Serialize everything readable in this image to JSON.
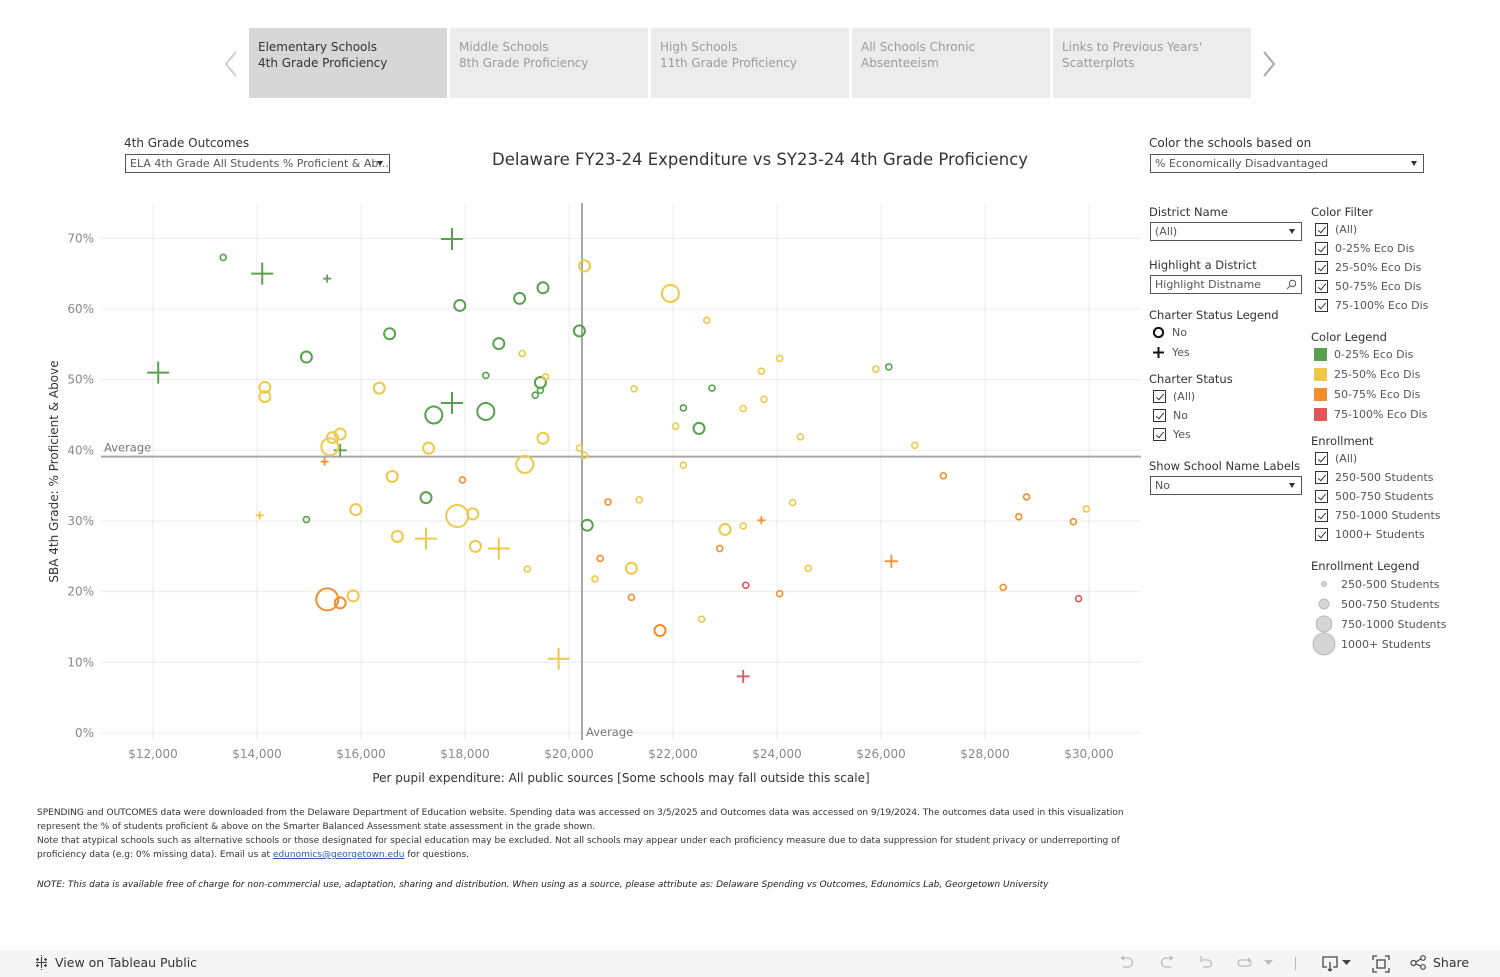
{
  "tabs": [
    {
      "line1": "Elementary Schools",
      "line2": "4th Grade Proficiency",
      "active": true
    },
    {
      "line1": "Middle Schools",
      "line2": "8th Grade Proficiency",
      "active": false
    },
    {
      "line1": "High Schools",
      "line2": "11th Grade Proficiency",
      "active": false
    },
    {
      "line1": "All Schools Chronic",
      "line2": "Absenteeism",
      "active": false
    },
    {
      "line1": "Links to Previous Years'",
      "line2": "Scatterplots",
      "active": false
    }
  ],
  "outcomes": {
    "label": "4th Grade Outcomes",
    "value": "ELA 4th Grade All Students % Proficient & Ab..."
  },
  "color_by": {
    "label": "Color the schools based on",
    "value": "% Economically Disadvantaged"
  },
  "district": {
    "label": "District Name",
    "value": "(All)"
  },
  "highlight": {
    "label": "Highlight a District",
    "placeholder": "Highlight Distname"
  },
  "charter_legend": {
    "title": "Charter Status Legend",
    "items": [
      "No",
      "Yes"
    ]
  },
  "charter_status": {
    "title": "Charter Status",
    "items": [
      "(All)",
      "No",
      "Yes"
    ]
  },
  "school_labels": {
    "label": "Show School Name Labels",
    "value": "No"
  },
  "color_filter": {
    "title": "Color Filter",
    "items": [
      "(All)",
      "0-25% Eco Dis",
      "25-50% Eco Dis",
      "50-75% Eco Dis",
      "75-100% Eco Dis"
    ]
  },
  "color_legend": {
    "title": "Color Legend",
    "items": [
      {
        "label": "0-25% Eco Dis",
        "color": "#59a14f"
      },
      {
        "label": "25-50% Eco Dis",
        "color": "#edc948"
      },
      {
        "label": "50-75% Eco Dis",
        "color": "#f28e2b"
      },
      {
        "label": "75-100% Eco Dis",
        "color": "#e15759"
      }
    ]
  },
  "enrollment_filter": {
    "title": "Enrollment",
    "items": [
      "(All)",
      "250-500 Students",
      "500-750 Students",
      "750-1000 Students",
      "1000+ Students"
    ]
  },
  "enrollment_legend": {
    "title": "Enrollment Legend",
    "items": [
      "250-500 Students",
      "500-750 Students",
      "750-1000 Students",
      "1000+ Students"
    ]
  },
  "notes": {
    "para1": "SPENDING and OUTCOMES data were downloaded from the Delaware Department of Education website. Spending data was accessed on 3/5/2025 and Outcomes data was accessed on 9/19/2024. The outcomes data used in this visualization represent the % of students proficient & above on the Smarter Balanced Assessment state assessment in the grade shown.",
    "para2_pre": "Note that atypical schools such as alternative schools or those designated for special education may be excluded. Not all schools may appear under each proficiency measure due to data suppression for student privacy or underreporting of proficiency data (e.g: 0% missing data). Email us at ",
    "email": "edunomics@georgetown.edu",
    "para2_post": " for questions.",
    "attribution": "NOTE: This data is available free of charge for non-commercial use, adaptation, sharing and distribution. When using as a source, please attribute as: Delaware Spending vs Outcomes, Edunomics Lab, Georgetown University"
  },
  "footer": {
    "view_label": "View on Tableau Public",
    "share_label": "Share"
  },
  "chart_data": {
    "type": "scatter",
    "title": "Delaware FY23-24 Expenditure vs SY23-24 4th Grade Proficiency",
    "xlabel": "Per pupil expenditure: All public sources [Some schools may fall outside this scale]",
    "ylabel": "SBA 4th Grade: % Proficient & Above",
    "xlim": [
      11000,
      31000
    ],
    "ylim": [
      -1,
      75
    ],
    "x_ticks": [
      12000,
      14000,
      16000,
      18000,
      20000,
      22000,
      24000,
      26000,
      28000,
      30000
    ],
    "x_tick_labels": [
      "$12,000",
      "$14,000",
      "$16,000",
      "$18,000",
      "$20,000",
      "$22,000",
      "$24,000",
      "$26,000",
      "$28,000",
      "$30,000"
    ],
    "y_ticks": [
      0,
      10,
      20,
      30,
      40,
      50,
      60,
      70
    ],
    "y_tick_labels": [
      "0%",
      "10%",
      "20%",
      "30%",
      "40%",
      "50%",
      "60%",
      "70%"
    ],
    "grid": true,
    "reference_lines": {
      "x_average": 20250,
      "y_average": 39.1,
      "label": "Average"
    },
    "encoding": {
      "color": "% Economically Disadvantaged band",
      "shape": "Charter status (circle = No, plus = Yes)",
      "size": "Enrollment band"
    },
    "colors": {
      "0-25": "#59a14f",
      "25-50": "#edc948",
      "50-75": "#f28e2b",
      "75-100": "#e15759"
    },
    "points": [
      {
        "x": 13350,
        "y": 67.3,
        "eco": "0-25",
        "charter": false,
        "size": 1
      },
      {
        "x": 14100,
        "y": 65.0,
        "eco": "0-25",
        "charter": true,
        "size": 3
      },
      {
        "x": 15350,
        "y": 64.3,
        "eco": "0-25",
        "charter": true,
        "size": 1
      },
      {
        "x": 17750,
        "y": 69.9,
        "eco": "0-25",
        "charter": true,
        "size": 3
      },
      {
        "x": 12100,
        "y": 51.0,
        "eco": "0-25",
        "charter": true,
        "size": 3
      },
      {
        "x": 14950,
        "y": 53.2,
        "eco": "0-25",
        "charter": false,
        "size": 2
      },
      {
        "x": 16550,
        "y": 56.5,
        "eco": "0-25",
        "charter": false,
        "size": 2
      },
      {
        "x": 17900,
        "y": 60.5,
        "eco": "0-25",
        "charter": false,
        "size": 2
      },
      {
        "x": 19050,
        "y": 61.5,
        "eco": "0-25",
        "charter": false,
        "size": 2
      },
      {
        "x": 19500,
        "y": 63.0,
        "eco": "0-25",
        "charter": false,
        "size": 2
      },
      {
        "x": 20200,
        "y": 56.9,
        "eco": "0-25",
        "charter": false,
        "size": 2
      },
      {
        "x": 18650,
        "y": 55.1,
        "eco": "0-25",
        "charter": false,
        "size": 2
      },
      {
        "x": 18400,
        "y": 50.6,
        "eco": "0-25",
        "charter": false,
        "size": 1
      },
      {
        "x": 19450,
        "y": 49.6,
        "eco": "0-25",
        "charter": false,
        "size": 2
      },
      {
        "x": 19450,
        "y": 48.5,
        "eco": "0-25",
        "charter": false,
        "size": 1
      },
      {
        "x": 19350,
        "y": 47.8,
        "eco": "0-25",
        "charter": false,
        "size": 1
      },
      {
        "x": 17400,
        "y": 45.0,
        "eco": "0-25",
        "charter": false,
        "size": 3
      },
      {
        "x": 17750,
        "y": 46.7,
        "eco": "0-25",
        "charter": true,
        "size": 3
      },
      {
        "x": 18400,
        "y": 45.5,
        "eco": "0-25",
        "charter": false,
        "size": 3
      },
      {
        "x": 15600,
        "y": 40.0,
        "eco": "0-25",
        "charter": true,
        "size": 2
      },
      {
        "x": 17250,
        "y": 33.3,
        "eco": "0-25",
        "charter": false,
        "size": 2
      },
      {
        "x": 14950,
        "y": 30.2,
        "eco": "0-25",
        "charter": false,
        "size": 1
      },
      {
        "x": 20350,
        "y": 29.4,
        "eco": "0-25",
        "charter": false,
        "size": 2
      },
      {
        "x": 22200,
        "y": 46.0,
        "eco": "0-25",
        "charter": false,
        "size": 1
      },
      {
        "x": 22750,
        "y": 48.8,
        "eco": "0-25",
        "charter": false,
        "size": 1
      },
      {
        "x": 22500,
        "y": 43.1,
        "eco": "0-25",
        "charter": false,
        "size": 2
      },
      {
        "x": 26150,
        "y": 51.8,
        "eco": "0-25",
        "charter": false,
        "size": 1
      },
      {
        "x": 20300,
        "y": 66.1,
        "eco": "25-50",
        "charter": false,
        "size": 2
      },
      {
        "x": 21950,
        "y": 62.2,
        "eco": "25-50",
        "charter": false,
        "size": 3
      },
      {
        "x": 22650,
        "y": 58.4,
        "eco": "25-50",
        "charter": false,
        "size": 1
      },
      {
        "x": 19100,
        "y": 53.7,
        "eco": "25-50",
        "charter": false,
        "size": 1
      },
      {
        "x": 19550,
        "y": 50.4,
        "eco": "25-50",
        "charter": false,
        "size": 1
      },
      {
        "x": 14150,
        "y": 48.9,
        "eco": "25-50",
        "charter": false,
        "size": 2
      },
      {
        "x": 14150,
        "y": 47.6,
        "eco": "25-50",
        "charter": false,
        "size": 2
      },
      {
        "x": 16350,
        "y": 48.8,
        "eco": "25-50",
        "charter": false,
        "size": 2
      },
      {
        "x": 15600,
        "y": 42.3,
        "eco": "25-50",
        "charter": false,
        "size": 2
      },
      {
        "x": 15450,
        "y": 41.8,
        "eco": "25-50",
        "charter": false,
        "size": 2
      },
      {
        "x": 15400,
        "y": 40.5,
        "eco": "25-50",
        "charter": false,
        "size": 3
      },
      {
        "x": 17300,
        "y": 40.3,
        "eco": "25-50",
        "charter": false,
        "size": 2
      },
      {
        "x": 19500,
        "y": 41.7,
        "eco": "25-50",
        "charter": false,
        "size": 2
      },
      {
        "x": 20200,
        "y": 40.3,
        "eco": "25-50",
        "charter": false,
        "size": 1
      },
      {
        "x": 20300,
        "y": 39.3,
        "eco": "25-50",
        "charter": false,
        "size": 1
      },
      {
        "x": 19150,
        "y": 38.0,
        "eco": "25-50",
        "charter": false,
        "size": 3
      },
      {
        "x": 16600,
        "y": 36.3,
        "eco": "25-50",
        "charter": false,
        "size": 2
      },
      {
        "x": 15900,
        "y": 31.6,
        "eco": "25-50",
        "charter": false,
        "size": 2
      },
      {
        "x": 17850,
        "y": 30.7,
        "eco": "25-50",
        "charter": false,
        "size": 4
      },
      {
        "x": 18150,
        "y": 31.0,
        "eco": "25-50",
        "charter": false,
        "size": 2
      },
      {
        "x": 16700,
        "y": 27.8,
        "eco": "25-50",
        "charter": false,
        "size": 2
      },
      {
        "x": 17250,
        "y": 27.5,
        "eco": "25-50",
        "charter": true,
        "size": 3
      },
      {
        "x": 18200,
        "y": 26.4,
        "eco": "25-50",
        "charter": false,
        "size": 2
      },
      {
        "x": 18650,
        "y": 26.1,
        "eco": "25-50",
        "charter": true,
        "size": 3
      },
      {
        "x": 14050,
        "y": 30.8,
        "eco": "25-50",
        "charter": true,
        "size": 1
      },
      {
        "x": 19200,
        "y": 23.2,
        "eco": "25-50",
        "charter": false,
        "size": 1
      },
      {
        "x": 15850,
        "y": 19.4,
        "eco": "25-50",
        "charter": false,
        "size": 2
      },
      {
        "x": 19800,
        "y": 10.5,
        "eco": "25-50",
        "charter": true,
        "size": 3
      },
      {
        "x": 21250,
        "y": 48.7,
        "eco": "25-50",
        "charter": false,
        "size": 1
      },
      {
        "x": 22050,
        "y": 43.4,
        "eco": "25-50",
        "charter": false,
        "size": 1
      },
      {
        "x": 22200,
        "y": 37.9,
        "eco": "25-50",
        "charter": false,
        "size": 1
      },
      {
        "x": 23350,
        "y": 45.9,
        "eco": "25-50",
        "charter": false,
        "size": 1
      },
      {
        "x": 23700,
        "y": 51.2,
        "eco": "25-50",
        "charter": false,
        "size": 1
      },
      {
        "x": 23750,
        "y": 47.2,
        "eco": "25-50",
        "charter": false,
        "size": 1
      },
      {
        "x": 24050,
        "y": 53.0,
        "eco": "25-50",
        "charter": false,
        "size": 1
      },
      {
        "x": 24450,
        "y": 41.9,
        "eco": "25-50",
        "charter": false,
        "size": 1
      },
      {
        "x": 25900,
        "y": 51.5,
        "eco": "25-50",
        "charter": false,
        "size": 1
      },
      {
        "x": 26650,
        "y": 40.7,
        "eco": "25-50",
        "charter": false,
        "size": 1
      },
      {
        "x": 21350,
        "y": 33.0,
        "eco": "25-50",
        "charter": false,
        "size": 1
      },
      {
        "x": 23000,
        "y": 28.8,
        "eco": "25-50",
        "charter": false,
        "size": 2
      },
      {
        "x": 23350,
        "y": 29.3,
        "eco": "25-50",
        "charter": false,
        "size": 1
      },
      {
        "x": 24300,
        "y": 32.6,
        "eco": "25-50",
        "charter": false,
        "size": 1
      },
      {
        "x": 20500,
        "y": 21.8,
        "eco": "25-50",
        "charter": false,
        "size": 1
      },
      {
        "x": 21200,
        "y": 23.3,
        "eco": "25-50",
        "charter": false,
        "size": 2
      },
      {
        "x": 22550,
        "y": 16.1,
        "eco": "25-50",
        "charter": false,
        "size": 1
      },
      {
        "x": 24600,
        "y": 23.3,
        "eco": "25-50",
        "charter": false,
        "size": 1
      },
      {
        "x": 29950,
        "y": 31.7,
        "eco": "25-50",
        "charter": false,
        "size": 1
      },
      {
        "x": 15300,
        "y": 38.4,
        "eco": "50-75",
        "charter": true,
        "size": 1
      },
      {
        "x": 17950,
        "y": 35.8,
        "eco": "50-75",
        "charter": false,
        "size": 1
      },
      {
        "x": 15350,
        "y": 18.9,
        "eco": "50-75",
        "charter": false,
        "size": 4
      },
      {
        "x": 15600,
        "y": 18.4,
        "eco": "50-75",
        "charter": false,
        "size": 2
      },
      {
        "x": 20750,
        "y": 32.7,
        "eco": "50-75",
        "charter": false,
        "size": 1
      },
      {
        "x": 20600,
        "y": 24.7,
        "eco": "50-75",
        "charter": false,
        "size": 1
      },
      {
        "x": 21200,
        "y": 19.2,
        "eco": "50-75",
        "charter": false,
        "size": 1
      },
      {
        "x": 21750,
        "y": 14.5,
        "eco": "50-75",
        "charter": false,
        "size": 2
      },
      {
        "x": 22900,
        "y": 26.1,
        "eco": "50-75",
        "charter": false,
        "size": 1
      },
      {
        "x": 23700,
        "y": 30.1,
        "eco": "50-75",
        "charter": true,
        "size": 1
      },
      {
        "x": 24050,
        "y": 19.7,
        "eco": "50-75",
        "charter": false,
        "size": 1
      },
      {
        "x": 26200,
        "y": 24.3,
        "eco": "50-75",
        "charter": true,
        "size": 2
      },
      {
        "x": 27200,
        "y": 36.4,
        "eco": "50-75",
        "charter": false,
        "size": 1
      },
      {
        "x": 28350,
        "y": 20.6,
        "eco": "50-75",
        "charter": false,
        "size": 1
      },
      {
        "x": 28650,
        "y": 30.6,
        "eco": "50-75",
        "charter": false,
        "size": 1
      },
      {
        "x": 28800,
        "y": 33.4,
        "eco": "50-75",
        "charter": false,
        "size": 1
      },
      {
        "x": 29700,
        "y": 29.9,
        "eco": "50-75",
        "charter": false,
        "size": 1
      },
      {
        "x": 23400,
        "y": 20.9,
        "eco": "75-100",
        "charter": false,
        "size": 1
      },
      {
        "x": 23350,
        "y": 8.0,
        "eco": "75-100",
        "charter": true,
        "size": 2
      },
      {
        "x": 29800,
        "y": 19.0,
        "eco": "75-100",
        "charter": false,
        "size": 1
      }
    ]
  }
}
